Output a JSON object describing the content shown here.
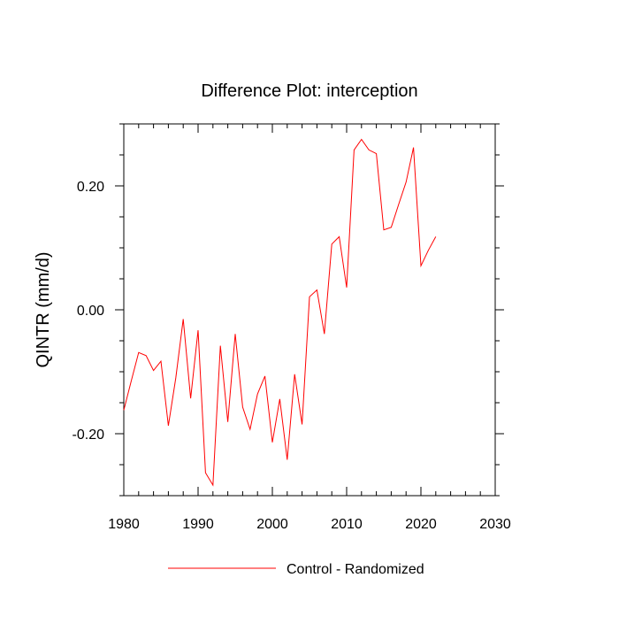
{
  "chart_data": {
    "type": "line",
    "title": "Difference Plot: interception",
    "xlabel": "",
    "ylabel": "QINTR  (mm/d)",
    "xlim": [
      1980,
      2030
    ],
    "ylim": [
      -0.3,
      0.3
    ],
    "xticks": [
      1980,
      1990,
      2000,
      2010,
      2020,
      2030
    ],
    "xtick_labels": [
      "1980",
      "1990",
      "2000",
      "2010",
      "2020",
      "2030"
    ],
    "yticks": [
      -0.2,
      0.0,
      0.2
    ],
    "ytick_labels": [
      "-0.20",
      "0.00",
      "0.20"
    ],
    "grid": false,
    "legend_position": "bottom-center",
    "series": [
      {
        "name": "Control - Randomized",
        "color": "#ff0000",
        "x": [
          1980,
          1981,
          1982,
          1983,
          1984,
          1985,
          1986,
          1987,
          1988,
          1989,
          1990,
          1991,
          1992,
          1993,
          1994,
          1995,
          1996,
          1997,
          1998,
          1999,
          2000,
          2001,
          2002,
          2003,
          2004,
          2005,
          2006,
          2007,
          2008,
          2009,
          2010,
          2011,
          2012,
          2013,
          2014,
          2015,
          2016,
          2017,
          2018,
          2019,
          2020,
          2021,
          2022
        ],
        "values": [
          -0.162,
          -0.115,
          -0.069,
          -0.074,
          -0.098,
          -0.083,
          -0.187,
          -0.11,
          -0.015,
          -0.143,
          -0.033,
          -0.263,
          -0.283,
          -0.058,
          -0.181,
          -0.039,
          -0.157,
          -0.193,
          -0.136,
          -0.107,
          -0.214,
          -0.144,
          -0.242,
          -0.104,
          -0.185,
          0.021,
          0.032,
          -0.039,
          0.106,
          0.118,
          0.036,
          0.258,
          0.275,
          0.258,
          0.252,
          0.129,
          0.133,
          0.17,
          0.206,
          0.262,
          0.071,
          0.096,
          0.118
        ]
      }
    ]
  }
}
